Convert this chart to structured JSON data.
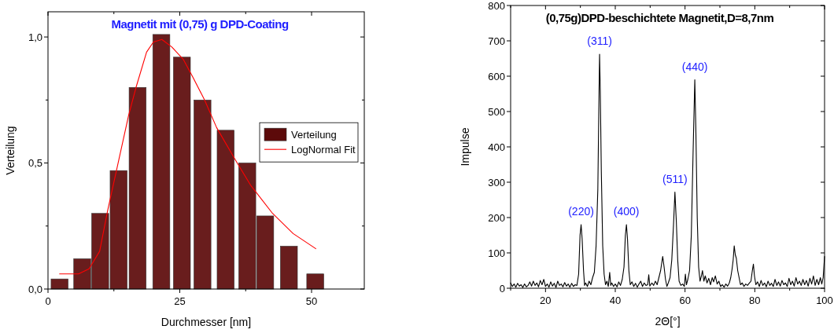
{
  "chart_data": [
    {
      "type": "bar",
      "title": "Magnetit mit  (0,75) g DPD-Coating",
      "xlabel": "Durchmesser [nm]",
      "ylabel": "Verteilung",
      "xlim": [
        0,
        60
      ],
      "xticks": [
        0,
        {
          "value": 12.5,
          "label": null
        },
        25,
        {
          "value": 37.5,
          "label": null
        },
        50
      ],
      "ylim": [
        0,
        1.1
      ],
      "yticks": [
        {
          "value": 0,
          "label": "0,0"
        },
        {
          "value": 0.25,
          "label": null
        },
        {
          "value": 0.5,
          "label": "0,5"
        },
        {
          "value": 0.75,
          "label": null
        },
        {
          "value": 1,
          "label": "1,0"
        }
      ],
      "legend": "right",
      "grid": false,
      "series": [
        {
          "name": "Verteilung",
          "color": "#5c0a0a",
          "x": [
            2.2,
            6.5,
            9.9,
            13.4,
            17.0,
            21.5,
            25.4,
            29.3,
            33.7,
            37.8,
            41.2,
            45.7,
            50.7
          ],
          "values": [
            0.04,
            0.12,
            0.3,
            0.47,
            0.8,
            1.01,
            0.92,
            0.75,
            0.63,
            0.5,
            0.29,
            0.17,
            0.06
          ]
        },
        {
          "name": "LogNormal Fit",
          "type": "line",
          "color": "#ff0000",
          "x": [
            2.2,
            5.8,
            7.8,
            9.8,
            11.3,
            13.3,
            15.3,
            16.7,
            18.7,
            20.0,
            21.6,
            23.5,
            25.7,
            27.5,
            29.7,
            32.0,
            35.6,
            38.5,
            42.6,
            46.5,
            50.8
          ],
          "values": [
            0.06,
            0.06,
            0.08,
            0.15,
            0.31,
            0.5,
            0.69,
            0.8,
            0.94,
            0.98,
            0.99,
            0.96,
            0.91,
            0.84,
            0.75,
            0.64,
            0.51,
            0.41,
            0.3,
            0.22,
            0.16
          ]
        }
      ]
    },
    {
      "type": "line",
      "title": "(0,75g)DPD-beschichtete Magnetit,D=8,7nm",
      "xlabel": "2Θ[°]",
      "ylabel": "Impulse",
      "xlim": [
        10,
        100
      ],
      "xticks": [
        {
          "value": 10,
          "label": null
        },
        20,
        {
          "value": 30,
          "label": null
        },
        40,
        {
          "value": 50,
          "label": null
        },
        60,
        {
          "value": 70,
          "label": null
        },
        80,
        {
          "value": 90,
          "label": null
        },
        100
      ],
      "ylim": [
        0,
        800
      ],
      "yticks": [
        0,
        100,
        200,
        300,
        400,
        500,
        600,
        700,
        800
      ],
      "grid": false,
      "legend": false,
      "annotations": [
        {
          "text": "(220)",
          "x": 30.2,
          "y": 180
        },
        {
          "text": "(311)",
          "x": 35.5,
          "y": 662
        },
        {
          "text": "(400)",
          "x": 43.2,
          "y": 180
        },
        {
          "text": "(511)",
          "x": 57.1,
          "y": 272
        },
        {
          "text": "(440)",
          "x": 62.8,
          "y": 590
        }
      ],
      "series": [
        {
          "color": "#000000",
          "x": [
            10,
            10.5,
            11,
            11.5,
            12,
            12.5,
            13,
            13.5,
            14,
            14.5,
            15,
            15.5,
            16,
            16.5,
            17,
            17.5,
            18,
            18.5,
            19,
            19.5,
            20,
            20.5,
            21,
            21.5,
            22,
            22.5,
            23,
            23.5,
            24,
            24.5,
            25,
            25.5,
            26,
            26.5,
            27,
            27.5,
            28,
            28.5,
            29,
            29.5,
            29.9,
            30.2,
            30.5,
            30.9,
            31.2,
            31.5,
            32,
            32.5,
            33,
            33.5,
            34,
            34.5,
            35,
            35.3,
            35.5,
            35.7,
            36,
            36.4,
            36.8,
            37.2,
            37.6,
            38,
            38.4,
            38.7,
            39,
            39.5,
            40,
            40.5,
            41,
            41.5,
            42,
            42.5,
            42.9,
            43.2,
            43.5,
            43.9,
            44.3,
            44.8,
            45.3,
            45.8,
            46.3,
            46.8,
            47.3,
            47.8,
            48.3,
            48.8,
            49.3,
            49.6,
            49.9,
            50.5,
            51,
            51.5,
            52,
            52.5,
            53,
            53.6,
            54,
            54.4,
            54.8,
            55.2,
            55.7,
            56.2,
            56.7,
            57.1,
            57.5,
            57.9,
            58.3,
            58.8,
            59.3,
            59.8,
            60.1,
            60.4,
            60.8,
            61.3,
            61.8,
            62.3,
            62.8,
            63.1,
            63.5,
            63.9,
            64.3,
            64.7,
            65,
            65.4,
            65.8,
            66.3,
            66.8,
            67.3,
            67.8,
            68.2,
            68.7,
            69.2,
            69.7,
            70.2,
            70.7,
            71.2,
            71.7,
            72.2,
            72.7,
            73.1,
            73.5,
            73.8,
            74.1,
            74.4,
            74.7,
            75.1,
            75.5,
            75.9,
            76.4,
            76.9,
            77.4,
            77.9,
            78.4,
            78.9,
            79.3,
            79.6,
            79.9,
            80.3,
            80.8,
            81.3,
            81.8,
            82.3,
            82.8,
            83.3,
            83.8,
            84.3,
            84.8,
            85.3,
            85.8,
            86.3,
            86.8,
            87.3,
            87.8,
            88.3,
            88.8,
            89.3,
            89.8,
            90.3,
            90.8,
            91.3,
            91.8,
            92.3,
            92.8,
            93.3,
            93.8,
            94.3,
            94.8,
            95.3,
            95.8,
            96.3,
            96.8,
            97.3,
            97.8,
            98.3,
            98.8,
            99.2,
            99.6,
            100
          ],
          "values": [
            15,
            5,
            12,
            3,
            14,
            6,
            10,
            2,
            12,
            4,
            8,
            18,
            6,
            20,
            8,
            15,
            4,
            22,
            10,
            25,
            5,
            12,
            3,
            18,
            6,
            14,
            2,
            20,
            8,
            12,
            4,
            16,
            6,
            12,
            3,
            14,
            5,
            10,
            8,
            40,
            150,
            180,
            140,
            50,
            8,
            15,
            5,
            20,
            10,
            30,
            45,
            120,
            280,
            520,
            662,
            560,
            330,
            120,
            40,
            10,
            20,
            5,
            45,
            8,
            15,
            5,
            12,
            4,
            18,
            8,
            25,
            60,
            150,
            180,
            140,
            50,
            10,
            18,
            5,
            14,
            3,
            12,
            20,
            5,
            15,
            8,
            10,
            38,
            6,
            15,
            8,
            20,
            10,
            30,
            50,
            90,
            60,
            25,
            5,
            15,
            30,
            80,
            180,
            272,
            190,
            80,
            20,
            8,
            12,
            5,
            40,
            10,
            25,
            50,
            150,
            380,
            590,
            450,
            200,
            60,
            20,
            35,
            50,
            20,
            35,
            15,
            28,
            10,
            30,
            18,
            35,
            12,
            20,
            5,
            10,
            3,
            12,
            6,
            15,
            30,
            55,
            80,
            120,
            95,
            85,
            50,
            30,
            10,
            15,
            5,
            12,
            8,
            14,
            20,
            50,
            68,
            35,
            10,
            18,
            5,
            22,
            8,
            15,
            4,
            20,
            8,
            14,
            5,
            25,
            8,
            18,
            6,
            22,
            10,
            15,
            5,
            28,
            10,
            20,
            6,
            30,
            12,
            20,
            8,
            25,
            10,
            22,
            6,
            28,
            12,
            35,
            8,
            25,
            10,
            30,
            12,
            30,
            90
          ]
        }
      ]
    }
  ]
}
